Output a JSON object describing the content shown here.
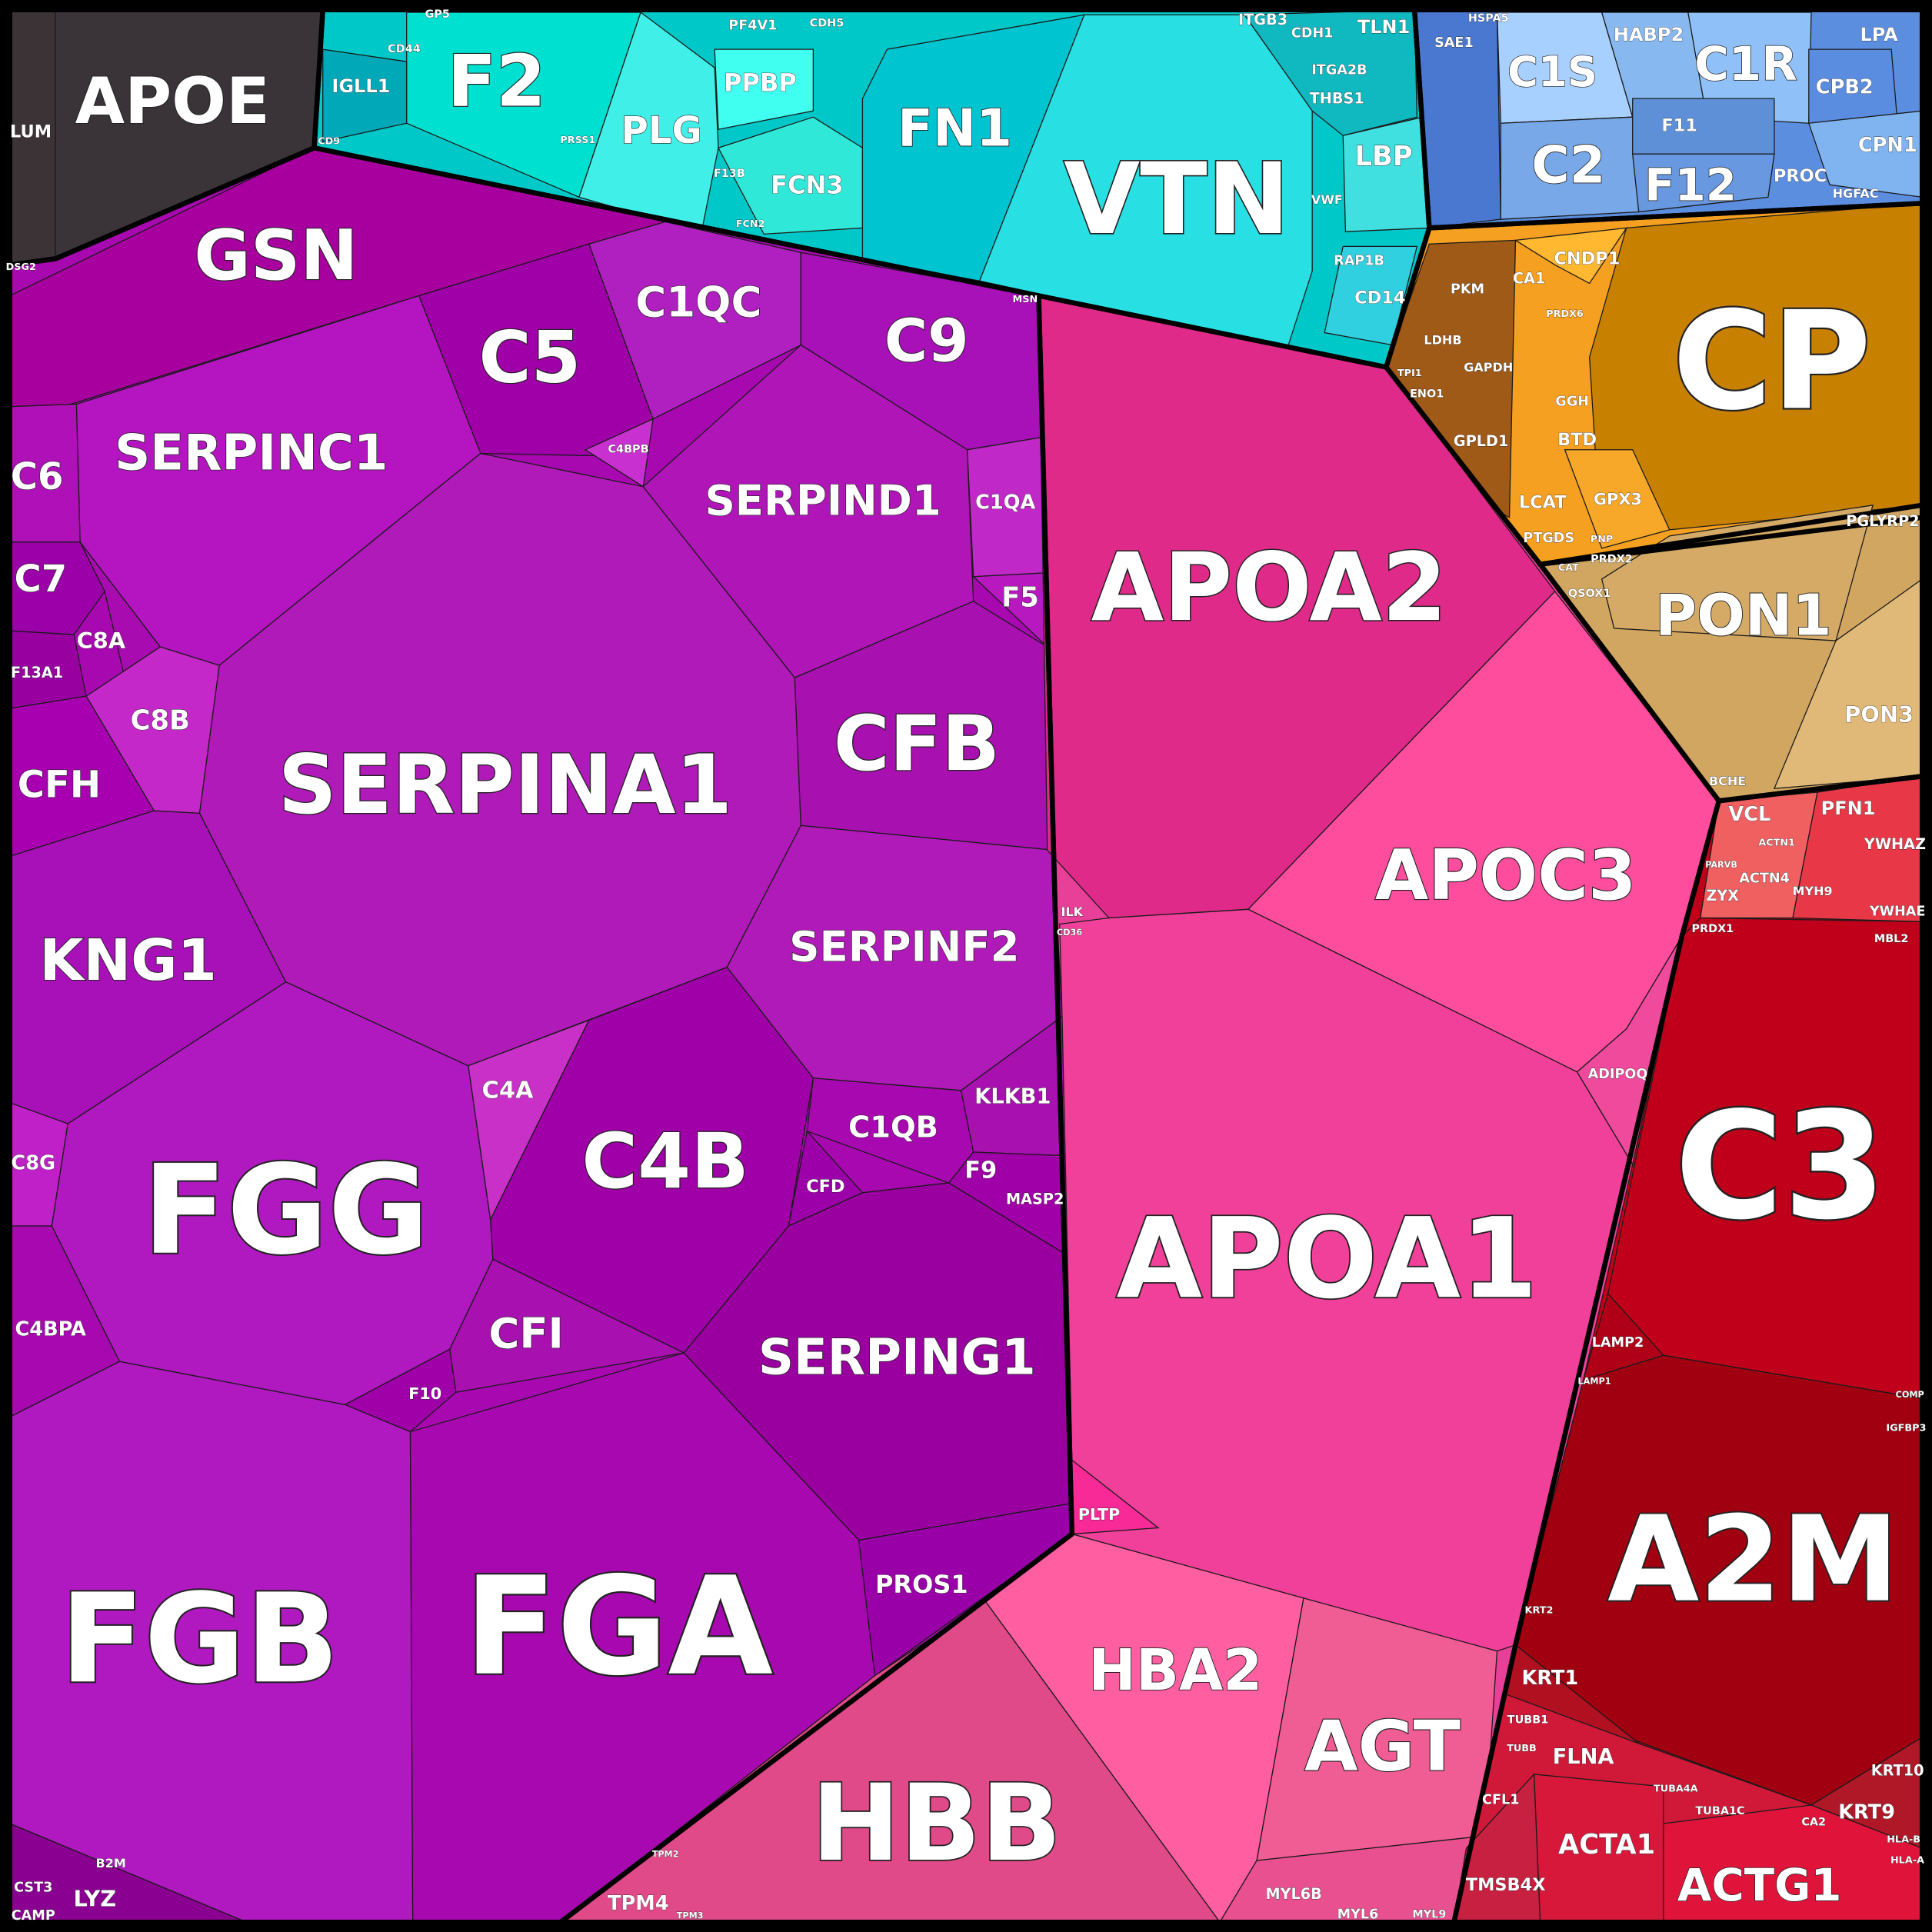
{
  "cells": [
    "APOE",
    "LUM",
    "F2",
    "IGLL1",
    "PLG",
    "PPBP",
    "FCN3",
    "FN1",
    "VTN",
    "LBP",
    "CD14",
    "ITGB3",
    "TLN1",
    "THBS1",
    "ITGA2B",
    "CDH1",
    "RAP1B",
    "VWF",
    "C1S",
    "HABP2",
    "C1R",
    "CPB2",
    "LPA",
    "C2",
    "F11",
    "F12",
    "PROC",
    "CPN1",
    "HGFAC",
    "SAE1",
    "HSPA5",
    "CP",
    "CNDP1",
    "CA1",
    "PKM",
    "LDHB",
    "GAPDH",
    "GPLD1",
    "ENO1",
    "TPI1",
    "GGH",
    "BTD",
    "GPX3",
    "LCAT",
    "PTGDS",
    "PRDX6",
    "PON1",
    "PGLYRP2",
    "PON3",
    "BCHE",
    "PRDX2",
    "QSOX1",
    "CAT",
    "PNP",
    "GSN",
    "C5",
    "C1QC",
    "C9",
    "SERPINC1",
    "C6",
    "C7",
    "C8A",
    "F13A1",
    "C8B",
    "CFH",
    "SERPIND1",
    "C1QA",
    "F5",
    "C4BPB",
    "SERPINA1",
    "CFB",
    "KNG1",
    "SERPINF2",
    "C4A",
    "C4B",
    "C1QB",
    "CFD",
    "KLKB1",
    "F9",
    "MASP2",
    "FGG",
    "C8G",
    "C4BPA",
    "CFI",
    "F10",
    "SERPING1",
    "FGB",
    "FGA",
    "PROS1",
    "ILK",
    "CD36",
    "MSN",
    "APOA2",
    "APOC3",
    "APOA1",
    "ADIPOQ",
    "PLTP",
    "HBA2",
    "AGT",
    "HBB",
    "MYL6B",
    "MYL6",
    "MYL9",
    "TPM4",
    "TPM3",
    "TPM2",
    "LYZ",
    "CST3",
    "CAMP",
    "B2M",
    "VCL",
    "ACTN1",
    "ACTN4",
    "ZYX",
    "MYH9",
    "PARVB",
    "PFN1",
    "YWHAZ",
    "YWHAE",
    "PRDX1",
    "MBL2",
    "C3",
    "LAMP2",
    "LAMP1",
    "IGFBP3",
    "COMP",
    "A2M",
    "KRT1",
    "KRT2",
    "FLNA",
    "TUBB1",
    "TUBB",
    "TUBA4A",
    "TUBA1C",
    "CFL1",
    "ACTA1",
    "ACTG1",
    "TMSB4X",
    "KRT10",
    "KRT9",
    "HLA-B",
    "HLA-A",
    "CA2",
    "DSG2",
    "CD9",
    "CD44",
    "GP5",
    "PF4V1",
    "CDH5",
    "F13B",
    "PRSS1",
    "FCN2"
  ]
}
